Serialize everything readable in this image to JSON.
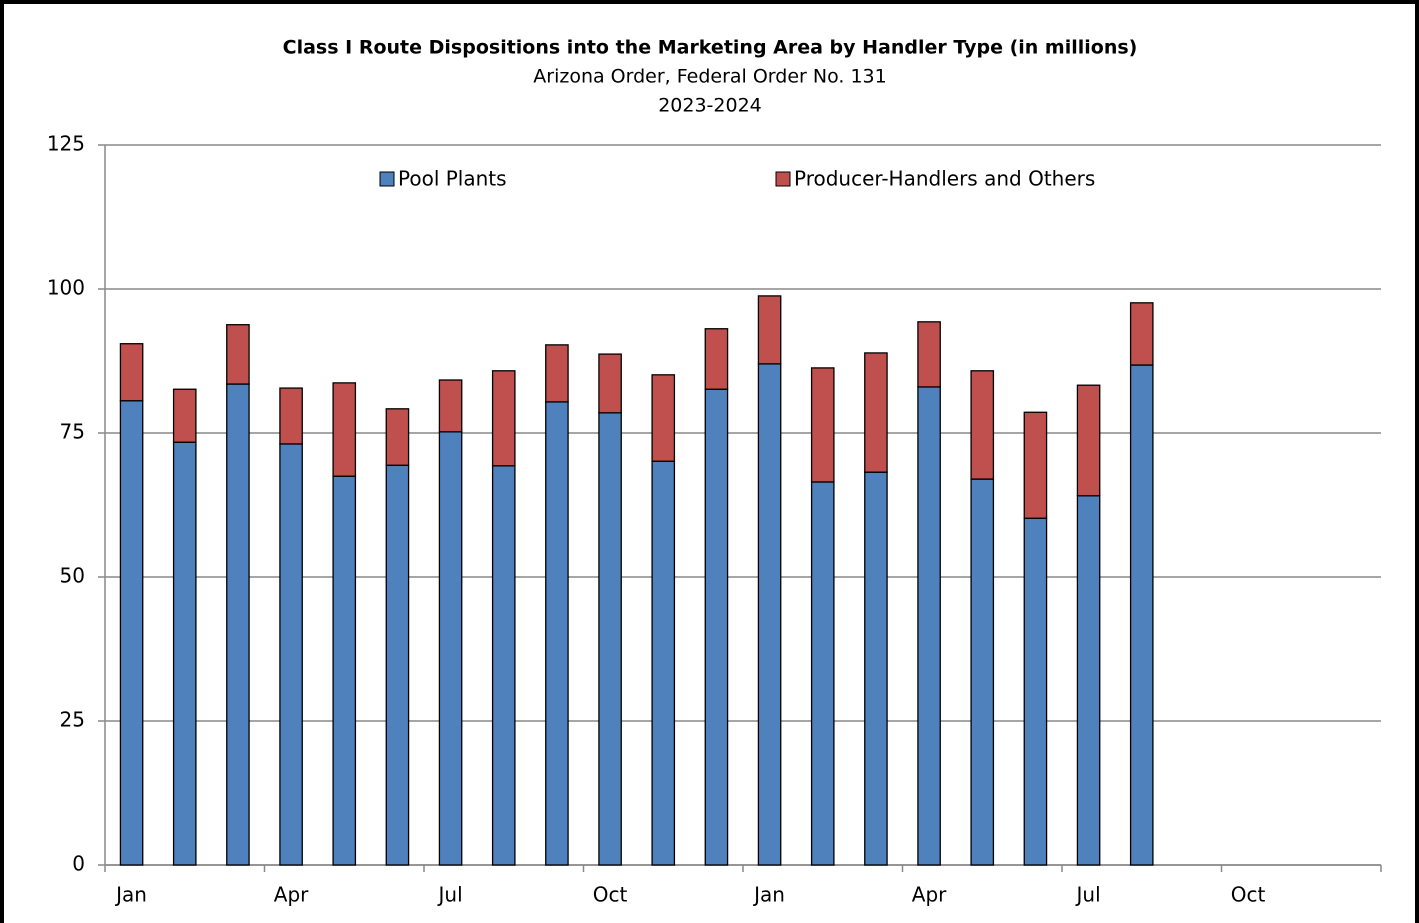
{
  "chart_data": {
    "type": "stacked_bar",
    "title": "Class I Route Dispositions into the Marketing Area by Handler Type (in millions)",
    "subtitle": [
      "Arizona Order, Federal Order No. 131",
      "2023-2024"
    ],
    "categories": [
      "Jan",
      null,
      null,
      "Apr",
      null,
      null,
      "Jul",
      null,
      null,
      "Oct",
      null,
      null,
      "Jan",
      null,
      null,
      "Apr",
      null,
      null,
      "Jul",
      null,
      null,
      "Oct",
      null,
      null
    ],
    "series": [
      {
        "name": "Pool Plants",
        "color": "#4f81bd",
        "values": [
          80.6,
          73.4,
          83.5,
          73.1,
          67.5,
          69.4,
          75.2,
          69.3,
          80.4,
          78.5,
          70.1,
          82.6,
          87.0,
          66.5,
          68.2,
          83.0,
          67.0,
          60.2,
          64.1,
          86.8,
          null,
          null,
          null,
          null
        ]
      },
      {
        "name": "Producer-Handlers and Others",
        "color": "#c0504d",
        "values": [
          9.9,
          9.2,
          10.3,
          9.7,
          16.2,
          9.8,
          9.0,
          16.5,
          9.9,
          10.2,
          15.0,
          10.5,
          11.8,
          19.8,
          20.7,
          11.3,
          18.8,
          18.4,
          19.2,
          10.8,
          null,
          null,
          null,
          null
        ]
      }
    ],
    "ylim": [
      0,
      125
    ],
    "yticks": [
      0,
      25,
      50,
      75,
      100,
      125
    ],
    "grid": true,
    "legend": "top"
  }
}
